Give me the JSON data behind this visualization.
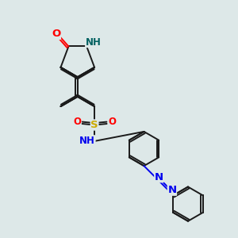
{
  "bg_color": "#dde8e8",
  "bond_color": "#1a1a1a",
  "bond_width": 1.4,
  "atom_colors": {
    "O": "#ff0000",
    "N_dark": "#006060",
    "N_blue": "#0000ee",
    "S": "#ccaa00",
    "C": "#1a1a1a"
  },
  "font_size": 8.5,
  "fig_size": [
    3.0,
    3.0
  ],
  "dpi": 100,
  "xlim": [
    0,
    10
  ],
  "ylim": [
    0,
    10
  ]
}
